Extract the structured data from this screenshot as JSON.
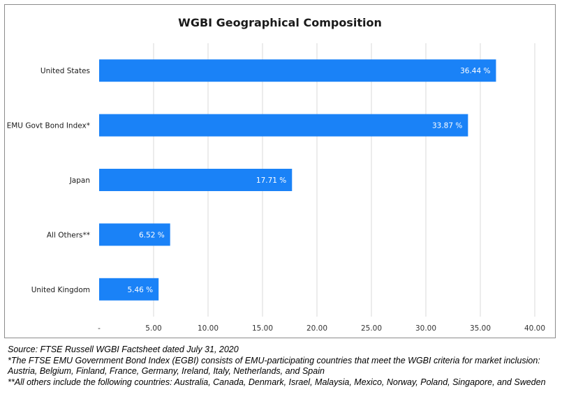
{
  "chart_data": {
    "type": "bar",
    "orientation": "horizontal",
    "title": "WGBI Geographical Composition",
    "categories": [
      "United States",
      "EMU Govt Bond Index*",
      "Japan",
      "All Others**",
      "United Kingdom"
    ],
    "values": [
      36.44,
      33.87,
      17.71,
      6.52,
      5.46
    ],
    "data_labels": [
      "36.44 %",
      "33.87 %",
      "17.71 %",
      "6.52 %",
      "5.46 %"
    ],
    "x_ticks": [
      0,
      5,
      10,
      15,
      20,
      25,
      30,
      35,
      40
    ],
    "x_tick_labels": [
      "-",
      "5.00",
      "10.00",
      "15.00",
      "20.00",
      "25.00",
      "30.00",
      "35.00",
      "40.00"
    ],
    "xlim": [
      0,
      40
    ],
    "grid": "vertical",
    "legend": "none",
    "bar_color": "#1a82f7",
    "xlabel": "",
    "ylabel": ""
  },
  "notes": {
    "source": "Source: FTSE Russell WGBI Factsheet dated July 31, 2020",
    "footnote1": "*The FTSE EMU Government Bond Index (EGBI) consists of EMU-participating countries that meet the WGBI criteria for market inclusion: Austria, Belgium, Finland, France, Germany, Ireland, Italy, Netherlands, and Spain",
    "footnote2": "**All others include the following countries: Australia, Canada, Denmark, Israel, Malaysia, Mexico, Norway, Poland, Singapore, and Sweden"
  }
}
